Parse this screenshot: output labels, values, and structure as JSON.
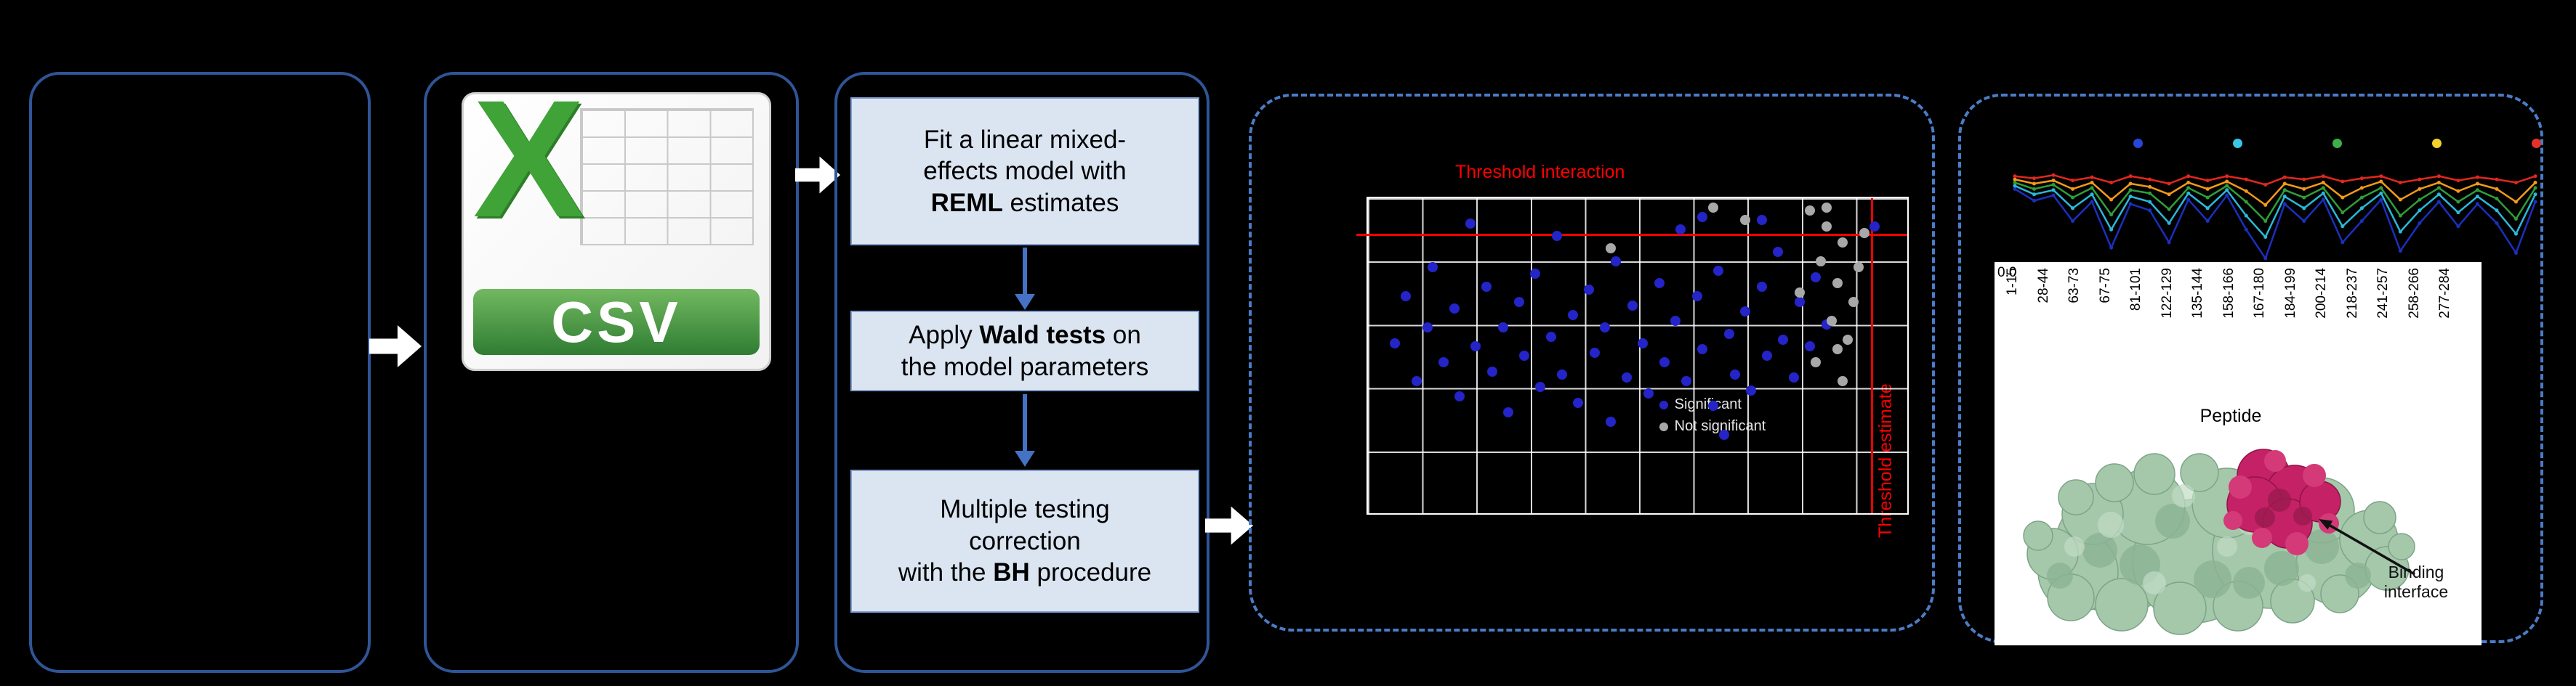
{
  "csv": {
    "letter": "X",
    "label": "CSV"
  },
  "flow": {
    "steps": [
      {
        "segments": [
          {
            "t": "Fit a linear mixed-\neffects model with\n"
          },
          {
            "t": "REML"
          },
          {
            "t": " estimates"
          }
        ]
      },
      {
        "segments": [
          {
            "t": "Apply "
          },
          {
            "t": "Wald tests"
          },
          {
            "t": " on\nthe model parameters"
          }
        ]
      },
      {
        "segments": [
          {
            "t": "Multiple testing\ncorrection\nwith the "
          },
          {
            "t": "BH"
          },
          {
            "t": " procedure"
          }
        ]
      }
    ]
  },
  "protein": {
    "annotation": "Binding\ninterface"
  },
  "colors": {
    "csv_green": "#3fa338",
    "threshold_red": "#ff0000",
    "box_fill": "#dbe5f2",
    "panel_border": "#2f5597",
    "dashed_border": "#4a7cc7"
  },
  "chart_data": [
    {
      "type": "scatter",
      "title": "Threshold interaction",
      "ylabel_right": "Threshold estimate",
      "grid": {
        "cols": 10,
        "rows": 5
      },
      "thresholds": {
        "interaction_y_pct": 11.2,
        "estimate_x_pct": 93.3
      },
      "legend": [
        {
          "label": "Significant",
          "color": "#2424c8"
        },
        {
          "label": "Not significant",
          "color": "#a8a8a8"
        }
      ],
      "series": [
        {
          "name": "significant",
          "color": "#2424c8",
          "points": [
            [
              5,
              46
            ],
            [
              7,
              31
            ],
            [
              9,
              58
            ],
            [
              11,
              41
            ],
            [
              12,
              22
            ],
            [
              14,
              52
            ],
            [
              16,
              35
            ],
            [
              17,
              63
            ],
            [
              19,
              8
            ],
            [
              20,
              47
            ],
            [
              22,
              28
            ],
            [
              23,
              55
            ],
            [
              25,
              41
            ],
            [
              26,
              68
            ],
            [
              28,
              33
            ],
            [
              29,
              50
            ],
            [
              31,
              24
            ],
            [
              32,
              60
            ],
            [
              34,
              44
            ],
            [
              35,
              12
            ],
            [
              36,
              56
            ],
            [
              38,
              37
            ],
            [
              39,
              65
            ],
            [
              41,
              29
            ],
            [
              42,
              49
            ],
            [
              44,
              41
            ],
            [
              45,
              71
            ],
            [
              46,
              20
            ],
            [
              48,
              57
            ],
            [
              49,
              34
            ],
            [
              51,
              46
            ],
            [
              52,
              62
            ],
            [
              54,
              27
            ],
            [
              55,
              52
            ],
            [
              57,
              39
            ],
            [
              58,
              10
            ],
            [
              59,
              58
            ],
            [
              61,
              31
            ],
            [
              62,
              48
            ],
            [
              64,
              66
            ],
            [
              65,
              23
            ],
            [
              67,
              43
            ],
            [
              68,
              56
            ],
            [
              70,
              36
            ],
            [
              71,
              61
            ],
            [
              73,
              28
            ],
            [
              74,
              50
            ],
            [
              76,
              17
            ],
            [
              77,
              45
            ],
            [
              79,
              57
            ],
            [
              80,
              33
            ],
            [
              82,
              47
            ],
            [
              83,
              25
            ],
            [
              85,
              40
            ],
            [
              62,
              6
            ],
            [
              73,
              7
            ],
            [
              94,
              9
            ],
            [
              66,
              75
            ]
          ]
        },
        {
          "name": "not_significant",
          "color": "#a8a8a8",
          "points": [
            [
              82,
              4
            ],
            [
              85,
              9
            ],
            [
              88,
              14
            ],
            [
              84,
              20
            ],
            [
              87,
              27
            ],
            [
              90,
              33
            ],
            [
              86,
              39
            ],
            [
              89,
              45
            ],
            [
              83,
              52
            ],
            [
              88,
              58
            ],
            [
              91,
              22
            ],
            [
              85,
              3
            ],
            [
              64,
              3
            ],
            [
              45,
              16
            ],
            [
              70,
              7
            ],
            [
              92,
              11
            ],
            [
              80,
              30
            ],
            [
              87,
              48
            ]
          ]
        }
      ]
    },
    {
      "type": "line",
      "x_count": 28,
      "ytick": "0.0",
      "xlabel": "Peptide",
      "xticklabels": [
        "1-15",
        "28-44",
        "63-73",
        "67-75",
        "81-101",
        "122-129",
        "135-144",
        "158-166",
        "167-180",
        "184-199",
        "200-214",
        "218-237",
        "241-257",
        "258-266",
        "277-284"
      ],
      "legend_dots": [
        "#2846d8",
        "#38c7e8",
        "#3fae49",
        "#f2d02e",
        "#e53228"
      ],
      "series": [
        {
          "name": "state-blue",
          "color": "#1c2fbe",
          "values": [
            0.78,
            0.67,
            0.72,
            0.48,
            0.66,
            0.23,
            0.64,
            0.58,
            0.28,
            0.68,
            0.48,
            0.72,
            0.4,
            0.13,
            0.64,
            0.48,
            0.68,
            0.28,
            0.48,
            0.68,
            0.2,
            0.46,
            0.66,
            0.43,
            0.64,
            0.46,
            0.18,
            0.66
          ]
        },
        {
          "name": "state-cyan",
          "color": "#2bb8d9",
          "values": [
            0.81,
            0.73,
            0.77,
            0.6,
            0.73,
            0.4,
            0.71,
            0.66,
            0.46,
            0.74,
            0.6,
            0.77,
            0.53,
            0.33,
            0.71,
            0.6,
            0.74,
            0.43,
            0.6,
            0.74,
            0.38,
            0.58,
            0.73,
            0.56,
            0.71,
            0.58,
            0.36,
            0.73
          ]
        },
        {
          "name": "state-green",
          "color": "#2f9e3a",
          "values": [
            0.84,
            0.78,
            0.82,
            0.7,
            0.79,
            0.54,
            0.77,
            0.74,
            0.59,
            0.79,
            0.7,
            0.81,
            0.66,
            0.48,
            0.77,
            0.7,
            0.79,
            0.56,
            0.7,
            0.79,
            0.53,
            0.68,
            0.79,
            0.66,
            0.77,
            0.69,
            0.5,
            0.79
          ]
        },
        {
          "name": "state-orange",
          "color": "#f59a18",
          "values": [
            0.87,
            0.83,
            0.86,
            0.78,
            0.84,
            0.68,
            0.83,
            0.8,
            0.73,
            0.84,
            0.78,
            0.85,
            0.76,
            0.63,
            0.83,
            0.78,
            0.84,
            0.7,
            0.79,
            0.85,
            0.68,
            0.78,
            0.84,
            0.76,
            0.83,
            0.78,
            0.66,
            0.84
          ]
        },
        {
          "name": "state-red",
          "color": "#e3271e",
          "values": [
            0.9,
            0.88,
            0.91,
            0.86,
            0.89,
            0.84,
            0.9,
            0.87,
            0.83,
            0.9,
            0.86,
            0.9,
            0.87,
            0.82,
            0.89,
            0.87,
            0.9,
            0.85,
            0.88,
            0.9,
            0.84,
            0.87,
            0.9,
            0.86,
            0.89,
            0.87,
            0.84,
            0.9
          ]
        }
      ]
    }
  ]
}
